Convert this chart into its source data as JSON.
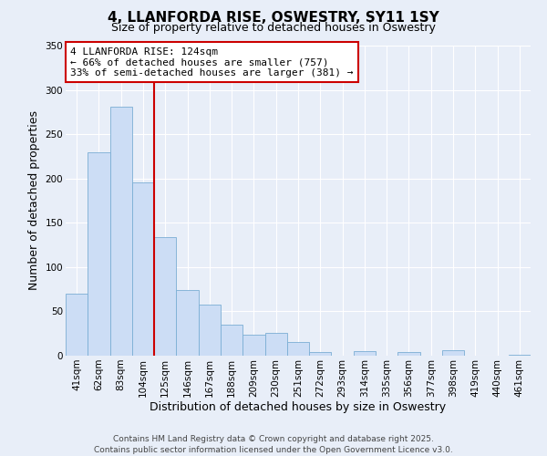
{
  "title": "4, LLANFORDA RISE, OSWESTRY, SY11 1SY",
  "subtitle": "Size of property relative to detached houses in Oswestry",
  "xlabel": "Distribution of detached houses by size in Oswestry",
  "ylabel": "Number of detached properties",
  "bar_labels": [
    "41sqm",
    "62sqm",
    "83sqm",
    "104sqm",
    "125sqm",
    "146sqm",
    "167sqm",
    "188sqm",
    "209sqm",
    "230sqm",
    "251sqm",
    "272sqm",
    "293sqm",
    "314sqm",
    "335sqm",
    "356sqm",
    "377sqm",
    "398sqm",
    "419sqm",
    "440sqm",
    "461sqm"
  ],
  "bar_values": [
    70,
    230,
    281,
    196,
    134,
    74,
    58,
    35,
    24,
    26,
    15,
    4,
    0,
    5,
    0,
    4,
    0,
    6,
    0,
    0,
    1
  ],
  "bar_color": "#ccddf5",
  "bar_edge_color": "#7baed4",
  "vline_color": "#cc0000",
  "annotation_line1": "4 LLANFORDA RISE: 124sqm",
  "annotation_line2": "← 66% of detached houses are smaller (757)",
  "annotation_line3": "33% of semi-detached houses are larger (381) →",
  "annotation_box_facecolor": "#ffffff",
  "annotation_box_edgecolor": "#cc0000",
  "ylim": [
    0,
    350
  ],
  "yticks": [
    0,
    50,
    100,
    150,
    200,
    250,
    300,
    350
  ],
  "footer_line1": "Contains HM Land Registry data © Crown copyright and database right 2025.",
  "footer_line2": "Contains public sector information licensed under the Open Government Licence v3.0.",
  "fig_background": "#e8eef8",
  "plot_background": "#e8eef8",
  "grid_color": "#ffffff",
  "title_fontsize": 11,
  "subtitle_fontsize": 9,
  "axis_label_fontsize": 9,
  "tick_fontsize": 7.5,
  "annotation_fontsize": 8,
  "footer_fontsize": 6.5
}
